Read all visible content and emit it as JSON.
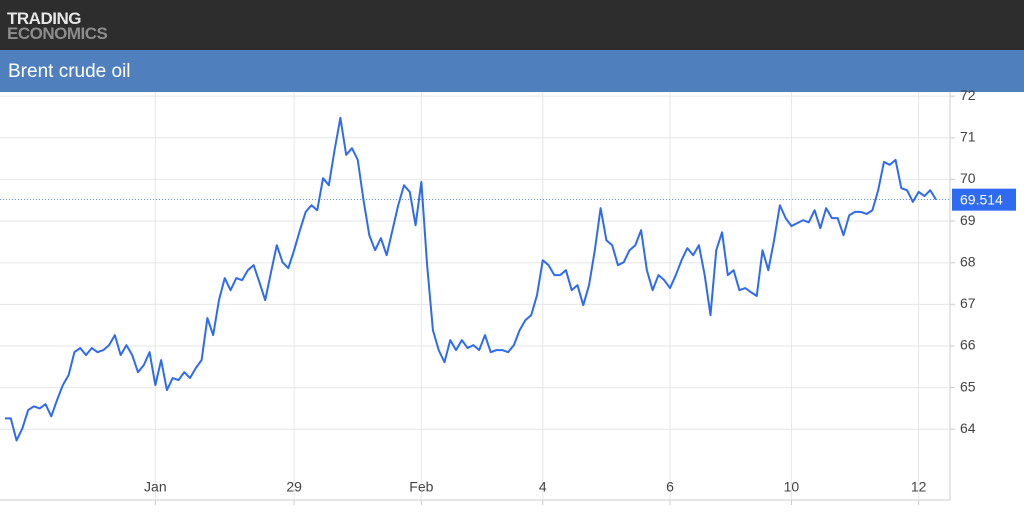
{
  "header": {
    "logo_line1": "TRADING",
    "logo_line2": "ECONOMICS"
  },
  "chart_data": {
    "type": "line",
    "title": "Brent crude oil",
    "color": "#2f6bf0",
    "grid": true,
    "ylim": [
      62.3,
      72.1
    ],
    "yticks": [
      64,
      65,
      66,
      67,
      68,
      69,
      70,
      71,
      72
    ],
    "categories": [
      null,
      null,
      null,
      null,
      null,
      null,
      null,
      null,
      null,
      null,
      null,
      null,
      null,
      null,
      null,
      null,
      null,
      null,
      null,
      null,
      null,
      null,
      null,
      null,
      null,
      null,
      "Jan",
      null,
      null,
      null,
      null,
      null,
      null,
      null,
      null,
      null,
      null,
      null,
      null,
      null,
      null,
      null,
      null,
      null,
      null,
      null,
      null,
      null,
      null,
      null,
      "29",
      null,
      null,
      null,
      null,
      null,
      null,
      null,
      null,
      null,
      null,
      null,
      null,
      null,
      null,
      null,
      null,
      null,
      null,
      null,
      null,
      null,
      "Feb",
      null,
      null,
      null,
      null,
      null,
      null,
      null,
      null,
      null,
      null,
      null,
      null,
      null,
      null,
      null,
      null,
      null,
      null,
      null,
      null,
      "4",
      null,
      null,
      null,
      null,
      null,
      null,
      null,
      null,
      null,
      null,
      null,
      null,
      null,
      null,
      null,
      null,
      null,
      null,
      null,
      null,
      null,
      "6",
      null,
      null,
      null,
      null,
      null,
      null,
      null,
      null,
      null,
      null,
      null,
      null,
      null,
      null,
      null,
      null,
      null,
      null,
      null,
      null,
      "10",
      null,
      null,
      null,
      null,
      null,
      null,
      null,
      null,
      null,
      null,
      null,
      null,
      null,
      null,
      null,
      null,
      null,
      null,
      null,
      null,
      null,
      "12",
      null,
      null,
      null
    ],
    "values": [
      64.26,
      64.26,
      63.73,
      64.02,
      64.46,
      64.55,
      64.5,
      64.6,
      64.31,
      64.7,
      65.06,
      65.3,
      65.85,
      65.95,
      65.78,
      65.95,
      65.85,
      65.9,
      66.02,
      66.26,
      65.78,
      66.02,
      65.78,
      65.37,
      65.54,
      65.85,
      65.06,
      65.66,
      64.94,
      65.23,
      65.18,
      65.37,
      65.23,
      65.47,
      65.66,
      66.67,
      66.26,
      67.1,
      67.63,
      67.34,
      67.63,
      67.58,
      67.82,
      67.94,
      67.53,
      67.1,
      67.77,
      68.42,
      68.01,
      67.87,
      68.3,
      68.78,
      69.22,
      69.38,
      69.26,
      70.03,
      69.86,
      70.71,
      71.48,
      70.59,
      70.75,
      70.47,
      69.5,
      68.66,
      68.3,
      68.59,
      68.18,
      68.78,
      69.38,
      69.86,
      69.7,
      68.9,
      69.94,
      67.94,
      66.38,
      65.9,
      65.61,
      66.14,
      65.9,
      66.14,
      65.95,
      66.02,
      65.9,
      66.26,
      65.85,
      65.9,
      65.9,
      65.85,
      66.02,
      66.38,
      66.62,
      66.74,
      67.22,
      68.06,
      67.94,
      67.7,
      67.7,
      67.82,
      67.34,
      67.46,
      66.98,
      67.46,
      68.3,
      69.31,
      68.54,
      68.42,
      67.94,
      68.01,
      68.3,
      68.42,
      68.78,
      67.82,
      67.34,
      67.7,
      67.58,
      67.39,
      67.7,
      68.06,
      68.35,
      68.18,
      68.42,
      67.7,
      66.74,
      68.3,
      68.73,
      67.7,
      67.82,
      67.34,
      67.39,
      67.29,
      67.2,
      68.3,
      67.82,
      68.54,
      69.38,
      69.07,
      68.88,
      68.95,
      69.02,
      68.97,
      69.26,
      68.83,
      69.31,
      69.07,
      69.07,
      68.66,
      69.14,
      69.22,
      69.22,
      69.17,
      69.26,
      69.74,
      70.42,
      70.35,
      70.47,
      69.79,
      69.74,
      69.46,
      69.7,
      69.6,
      69.74,
      69.514
    ]
  }
}
